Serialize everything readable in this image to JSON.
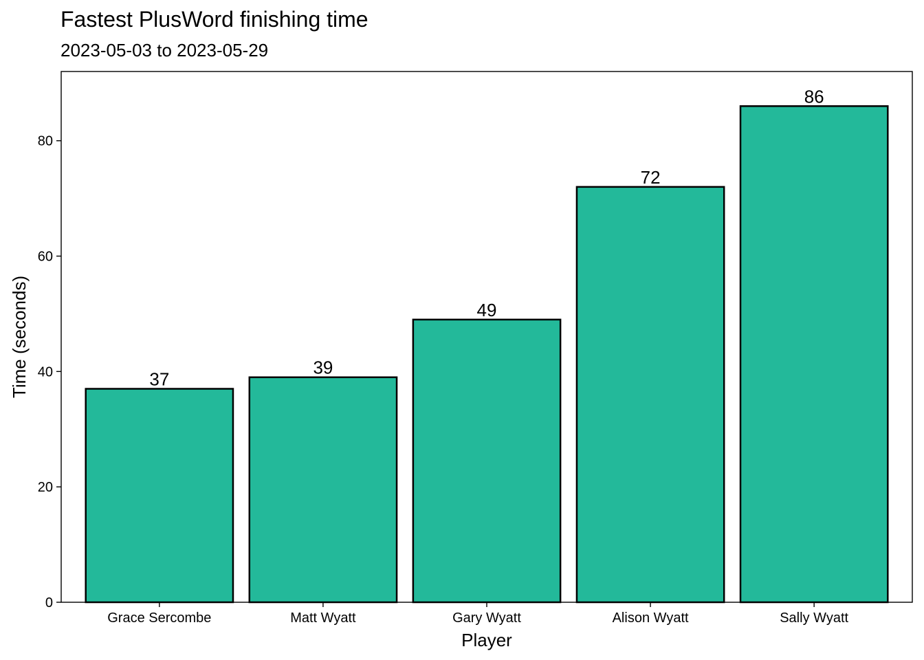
{
  "chart_data": {
    "type": "bar",
    "title": "Fastest PlusWord finishing time",
    "subtitle": "2023-05-03 to 2023-05-29",
    "xlabel": "Player",
    "ylabel": "Time (seconds)",
    "categories": [
      "Grace Sercombe",
      "Matt Wyatt",
      "Gary Wyatt",
      "Alison Wyatt",
      "Sally Wyatt"
    ],
    "values": [
      37,
      39,
      49,
      72,
      86
    ],
    "data_labels": [
      "37",
      "39",
      "49",
      "72",
      "86"
    ],
    "y_ticks": [
      0,
      20,
      40,
      60,
      80
    ],
    "y_tick_labels": [
      "0",
      "20",
      "40",
      "60",
      "80"
    ],
    "ylim": [
      0,
      92
    ],
    "bar_color": "#23B99A",
    "bar_outline_color": "#000000",
    "grid": false,
    "legend": "none"
  }
}
